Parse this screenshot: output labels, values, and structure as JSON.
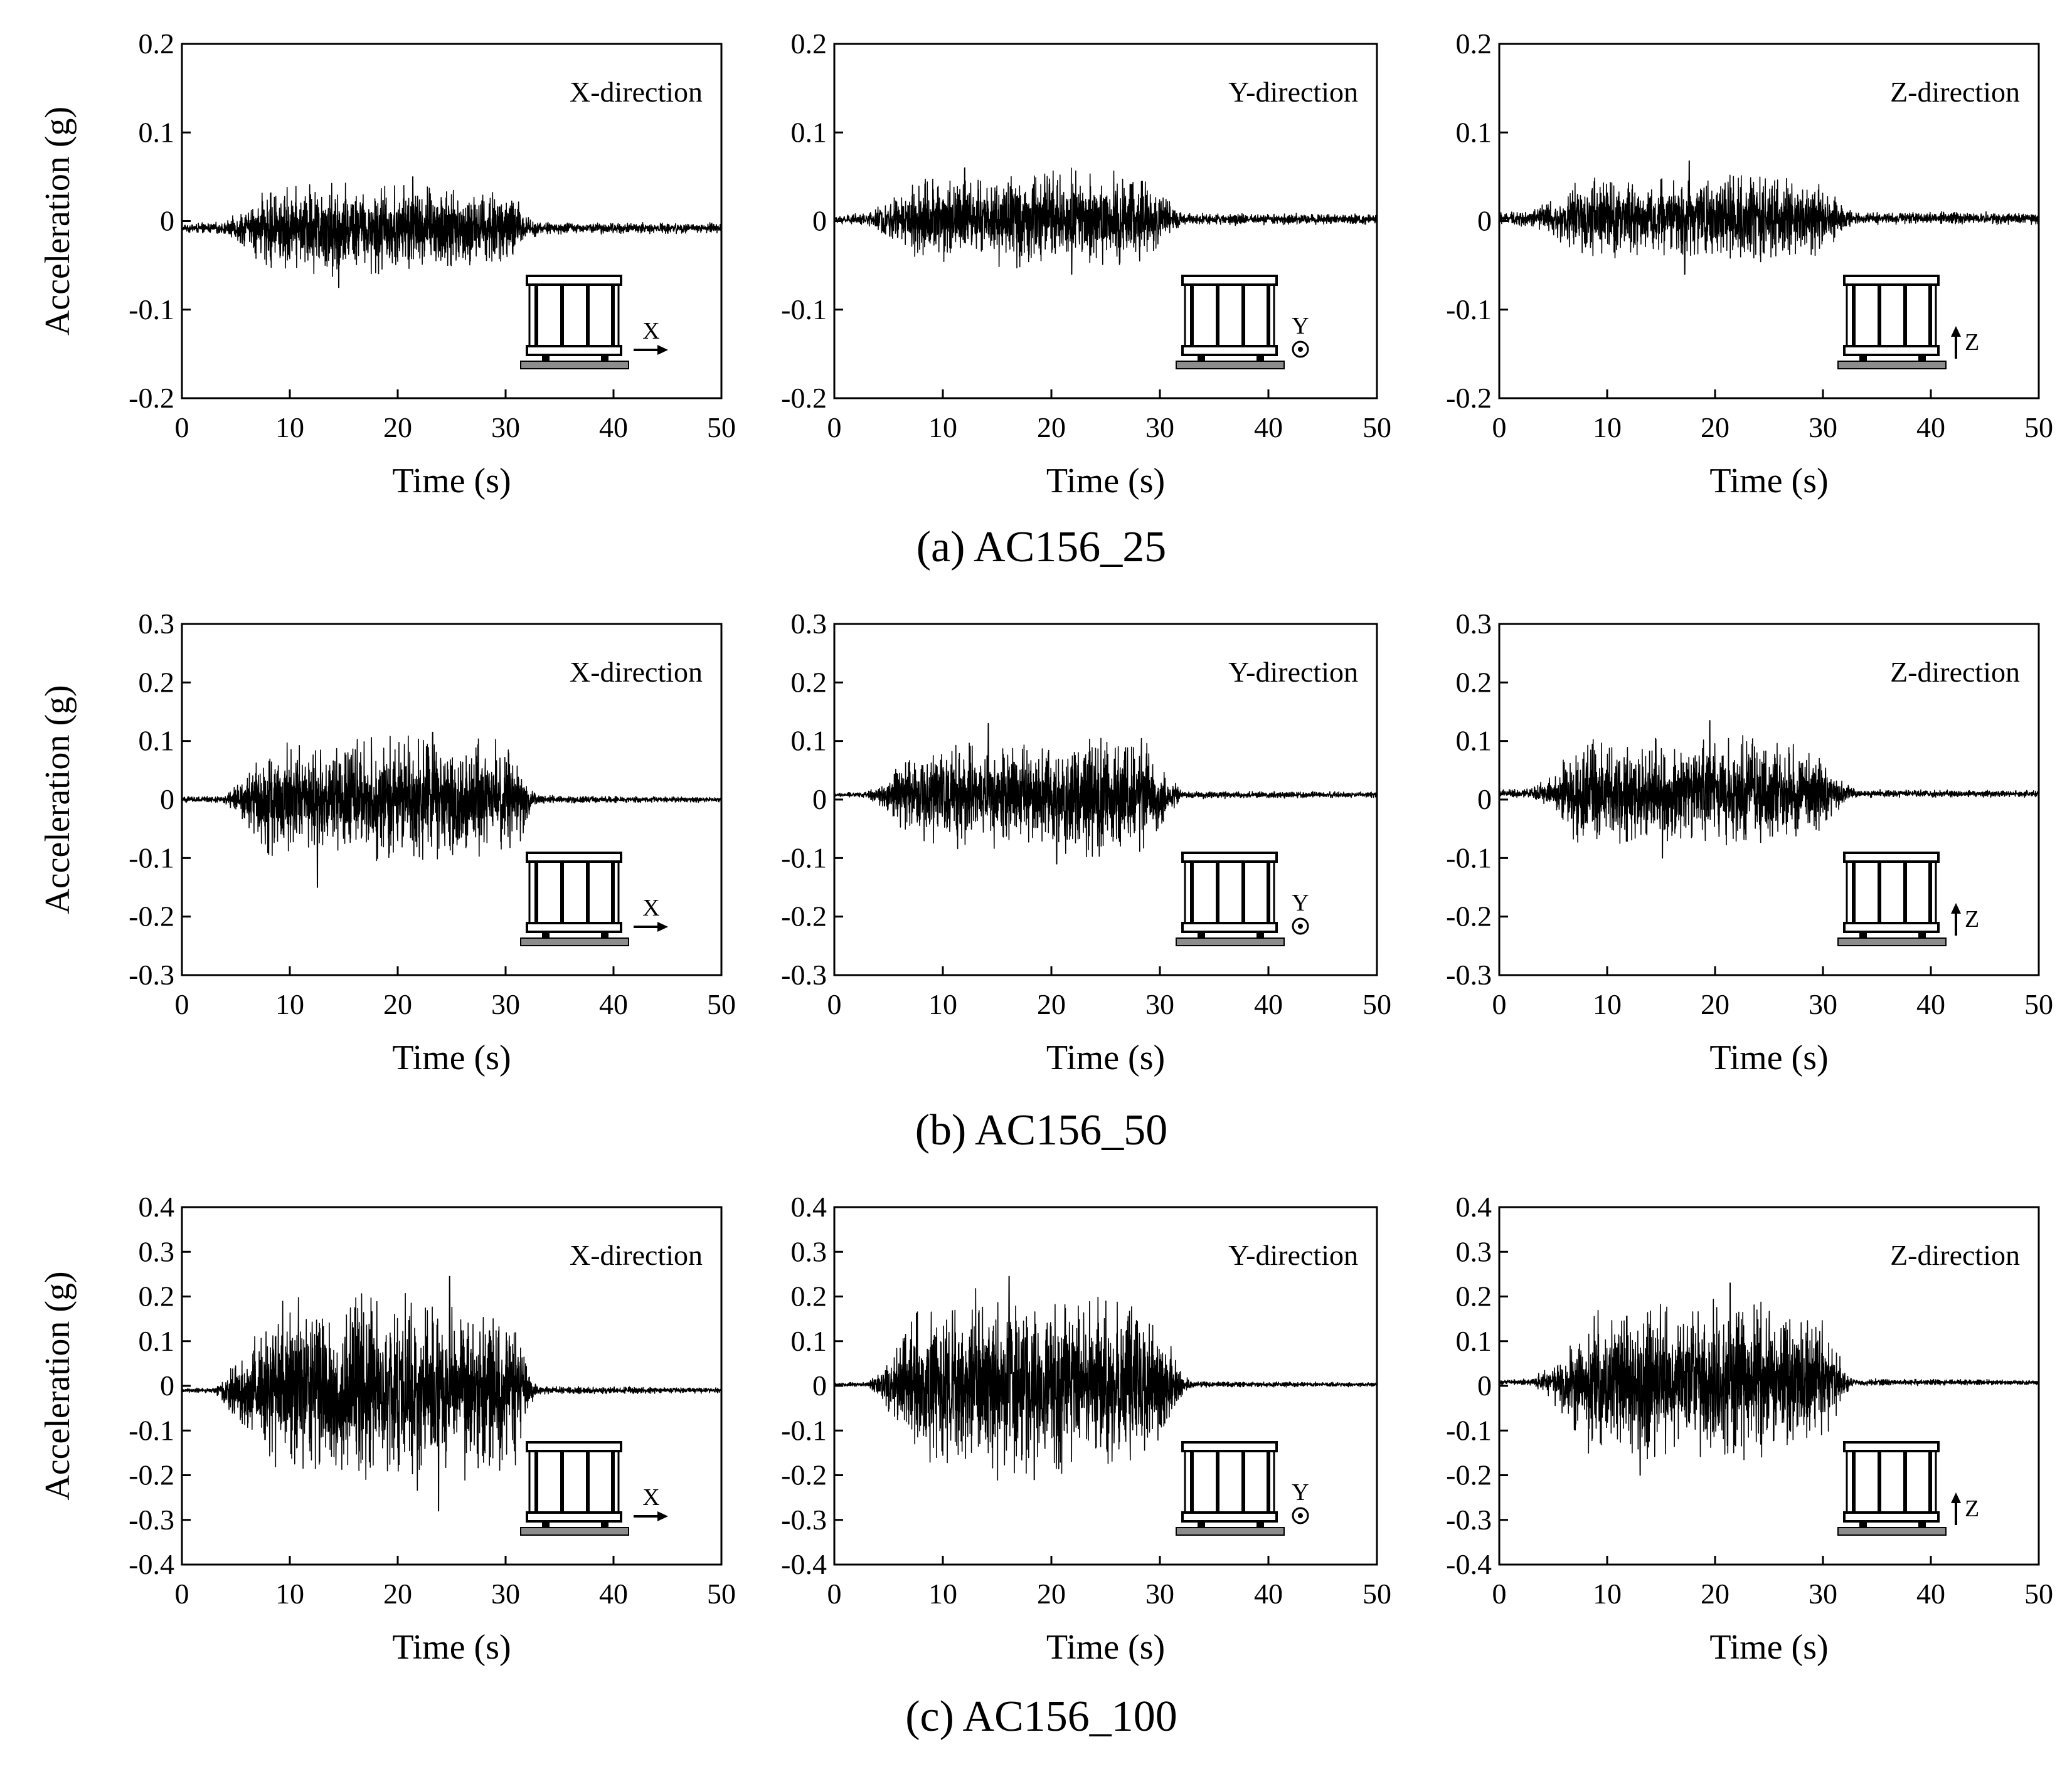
{
  "figure": {
    "rows": [
      {
        "caption": "(a) AC156_25",
        "ylim": [
          -0.2,
          0.2
        ],
        "yticks": [
          0.2,
          0.1,
          0,
          -0.1,
          -0.2
        ],
        "ytick_labels": [
          "0.2",
          "0.1",
          "0",
          "-0.1",
          "-0.2"
        ]
      },
      {
        "caption": "(b) AC156_50",
        "ylim": [
          -0.3,
          0.3
        ],
        "yticks": [
          0.3,
          0.2,
          0.1,
          0,
          -0.1,
          -0.2,
          -0.3
        ],
        "ytick_labels": [
          "0.3",
          "0.2",
          "0.1",
          "0",
          "-0.1",
          "-0.2",
          "-0.3"
        ]
      },
      {
        "caption": "(c) AC156_100",
        "ylim": [
          -0.4,
          0.4
        ],
        "yticks": [
          0.4,
          0.3,
          0.2,
          0.1,
          0,
          -0.1,
          -0.2,
          -0.3,
          -0.4
        ],
        "ytick_labels": [
          "0.4",
          "0.3",
          "0.2",
          "0.1",
          "0",
          "-0.1",
          "-0.2",
          "-0.3",
          "-0.4"
        ]
      }
    ],
    "columns": [
      {
        "direction_label": "X-direction",
        "icon": "building-with-x-arrow-icon",
        "axis_letter": "X"
      },
      {
        "direction_label": "Y-direction",
        "icon": "building-with-y-out-of-plane-icon",
        "axis_letter": "Y"
      },
      {
        "direction_label": "Z-direction",
        "icon": "building-with-z-up-arrow-icon",
        "axis_letter": "Z"
      }
    ]
  },
  "chart_data": [
    {
      "type": "line",
      "row": 0,
      "col": 0,
      "title": "X-direction",
      "xlabel": "Time (s)",
      "ylabel": "Acceleration (g)",
      "xlim": [
        0,
        50
      ],
      "ylim": [
        -0.2,
        0.2
      ],
      "xticks": [
        0,
        10,
        20,
        30,
        40,
        50
      ],
      "offset": -0.008,
      "strong_motion": [
        5,
        32
      ],
      "peak_pos": 0.05,
      "peak_neg": -0.075,
      "envelope": [
        [
          0,
          0.004
        ],
        [
          4,
          0.006
        ],
        [
          6,
          0.02
        ],
        [
          8,
          0.04
        ],
        [
          14,
          0.045
        ],
        [
          22,
          0.042
        ],
        [
          30,
          0.04
        ],
        [
          32,
          0.015
        ],
        [
          33,
          0.006
        ],
        [
          50,
          0.005
        ]
      ]
    },
    {
      "type": "line",
      "row": 0,
      "col": 1,
      "title": "Y-direction",
      "xlabel": "Time (s)",
      "ylabel": "Acceleration (g)",
      "xlim": [
        0,
        50
      ],
      "ylim": [
        -0.2,
        0.2
      ],
      "xticks": [
        0,
        10,
        20,
        30,
        40,
        50
      ],
      "offset": 0.002,
      "strong_motion": [
        4,
        31
      ],
      "peak_pos": 0.06,
      "peak_neg": -0.06,
      "envelope": [
        [
          0,
          0.004
        ],
        [
          3,
          0.006
        ],
        [
          5,
          0.02
        ],
        [
          8,
          0.04
        ],
        [
          16,
          0.045
        ],
        [
          24,
          0.048
        ],
        [
          28,
          0.045
        ],
        [
          31,
          0.015
        ],
        [
          32,
          0.006
        ],
        [
          50,
          0.005
        ]
      ]
    },
    {
      "type": "line",
      "row": 0,
      "col": 2,
      "title": "Z-direction",
      "xlabel": "Time (s)",
      "ylabel": "Acceleration (g)",
      "xlim": [
        0,
        50
      ],
      "ylim": [
        -0.2,
        0.2
      ],
      "xticks": [
        0,
        10,
        20,
        30,
        40,
        50
      ],
      "offset": 0.003,
      "strong_motion": [
        4,
        32
      ],
      "peak_pos": 0.068,
      "peak_neg": -0.06,
      "envelope": [
        [
          0,
          0.006
        ],
        [
          3,
          0.008
        ],
        [
          5,
          0.018
        ],
        [
          8,
          0.04
        ],
        [
          16,
          0.04
        ],
        [
          25,
          0.042
        ],
        [
          30,
          0.035
        ],
        [
          32,
          0.012
        ],
        [
          33,
          0.006
        ],
        [
          50,
          0.006
        ]
      ]
    },
    {
      "type": "line",
      "row": 1,
      "col": 0,
      "title": "X-direction",
      "xlabel": "Time (s)",
      "ylabel": "Acceleration (g)",
      "xlim": [
        0,
        50
      ],
      "ylim": [
        -0.3,
        0.3
      ],
      "xticks": [
        0,
        10,
        20,
        30,
        40,
        50
      ],
      "offset": 0.0,
      "strong_motion": [
        5,
        32
      ],
      "peak_pos": 0.115,
      "peak_neg": -0.15,
      "envelope": [
        [
          0,
          0.004
        ],
        [
          4,
          0.006
        ],
        [
          5,
          0.02
        ],
        [
          8,
          0.08
        ],
        [
          16,
          0.09
        ],
        [
          24,
          0.09
        ],
        [
          31,
          0.08
        ],
        [
          32,
          0.03
        ],
        [
          33,
          0.006
        ],
        [
          50,
          0.004
        ]
      ]
    },
    {
      "type": "line",
      "row": 1,
      "col": 1,
      "title": "Y-direction",
      "xlabel": "Time (s)",
      "ylabel": "Acceleration (g)",
      "xlim": [
        0,
        50
      ],
      "ylim": [
        -0.3,
        0.3
      ],
      "xticks": [
        0,
        10,
        20,
        30,
        40,
        50
      ],
      "offset": 0.008,
      "strong_motion": [
        4,
        32
      ],
      "peak_pos": 0.13,
      "peak_neg": -0.11,
      "envelope": [
        [
          0,
          0.003
        ],
        [
          3,
          0.005
        ],
        [
          5,
          0.03
        ],
        [
          8,
          0.07
        ],
        [
          16,
          0.08
        ],
        [
          24,
          0.09
        ],
        [
          29,
          0.08
        ],
        [
          31,
          0.03
        ],
        [
          32,
          0.006
        ],
        [
          50,
          0.004
        ]
      ]
    },
    {
      "type": "line",
      "row": 1,
      "col": 2,
      "title": "Z-direction",
      "xlabel": "Time (s)",
      "ylabel": "Acceleration (g)",
      "xlim": [
        0,
        50
      ],
      "ylim": [
        -0.3,
        0.3
      ],
      "xticks": [
        0,
        10,
        20,
        30,
        40,
        50
      ],
      "offset": 0.01,
      "strong_motion": [
        4,
        32
      ],
      "peak_pos": 0.135,
      "peak_neg": -0.1,
      "envelope": [
        [
          0,
          0.005
        ],
        [
          3,
          0.008
        ],
        [
          5,
          0.03
        ],
        [
          8,
          0.08
        ],
        [
          16,
          0.08
        ],
        [
          24,
          0.08
        ],
        [
          30,
          0.06
        ],
        [
          32,
          0.02
        ],
        [
          33,
          0.006
        ],
        [
          50,
          0.005
        ]
      ]
    },
    {
      "type": "line",
      "row": 2,
      "col": 0,
      "title": "X-direction",
      "xlabel": "Time (s)",
      "ylabel": "Acceleration (g)",
      "xlim": [
        0,
        50
      ],
      "ylim": [
        -0.4,
        0.4
      ],
      "xticks": [
        0,
        10,
        20,
        30,
        40,
        50
      ],
      "offset": -0.01,
      "strong_motion": [
        4,
        32
      ],
      "peak_pos": 0.245,
      "peak_neg": -0.28,
      "envelope": [
        [
          0,
          0.004
        ],
        [
          3,
          0.006
        ],
        [
          5,
          0.05
        ],
        [
          8,
          0.16
        ],
        [
          16,
          0.18
        ],
        [
          24,
          0.18
        ],
        [
          31,
          0.15
        ],
        [
          32,
          0.04
        ],
        [
          33,
          0.008
        ],
        [
          50,
          0.005
        ]
      ]
    },
    {
      "type": "line",
      "row": 2,
      "col": 1,
      "title": "Y-direction",
      "xlabel": "Time (s)",
      "ylabel": "Acceleration (g)",
      "xlim": [
        0,
        50
      ],
      "ylim": [
        -0.4,
        0.4
      ],
      "xticks": [
        0,
        10,
        20,
        30,
        40,
        50
      ],
      "offset": 0.003,
      "strong_motion": [
        4,
        32
      ],
      "peak_pos": 0.245,
      "peak_neg": -0.21,
      "envelope": [
        [
          0,
          0.003
        ],
        [
          3,
          0.005
        ],
        [
          5,
          0.05
        ],
        [
          8,
          0.16
        ],
        [
          16,
          0.18
        ],
        [
          24,
          0.18
        ],
        [
          30,
          0.14
        ],
        [
          32,
          0.03
        ],
        [
          33,
          0.006
        ],
        [
          50,
          0.004
        ]
      ]
    },
    {
      "type": "line",
      "row": 2,
      "col": 2,
      "title": "Z-direction",
      "xlabel": "Time (s)",
      "ylabel": "Acceleration (g)",
      "xlim": [
        0,
        50
      ],
      "ylim": [
        -0.4,
        0.4
      ],
      "xticks": [
        0,
        10,
        20,
        30,
        40,
        50
      ],
      "offset": 0.008,
      "strong_motion": [
        4,
        32
      ],
      "peak_pos": 0.23,
      "peak_neg": -0.2,
      "envelope": [
        [
          0,
          0.005
        ],
        [
          3,
          0.007
        ],
        [
          5,
          0.04
        ],
        [
          8,
          0.14
        ],
        [
          16,
          0.15
        ],
        [
          24,
          0.15
        ],
        [
          30,
          0.12
        ],
        [
          32,
          0.03
        ],
        [
          33,
          0.007
        ],
        [
          50,
          0.005
        ]
      ]
    }
  ]
}
